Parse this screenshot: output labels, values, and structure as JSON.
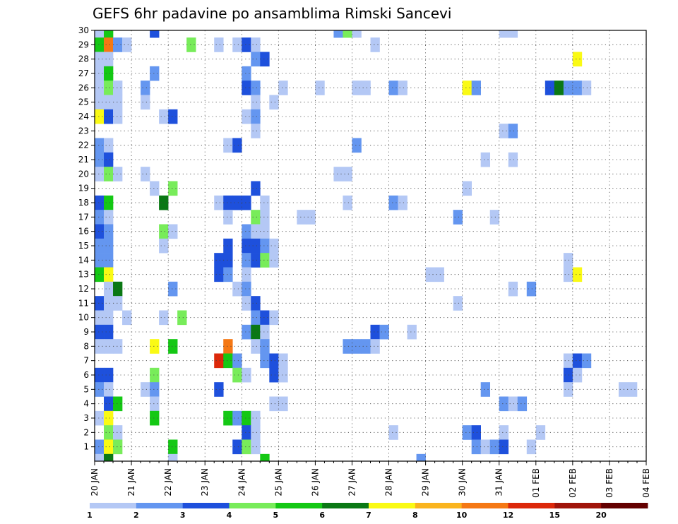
{
  "chart_data": {
    "type": "heatmap",
    "title": "GEFS 6hr padavine po ansamblima Rimski Sancevi",
    "grid": true,
    "y_ticks": [
      "1",
      "2",
      "3",
      "4",
      "5",
      "6",
      "7",
      "8",
      "9",
      "10",
      "11",
      "12",
      "13",
      "14",
      "15",
      "16",
      "17",
      "18",
      "19",
      "20",
      "21",
      "22",
      "23",
      "24",
      "25",
      "26",
      "27",
      "28",
      "29",
      "30"
    ],
    "x_ticks": [
      "20 JAN",
      "21 JAN",
      "22 JAN",
      "23 JAN",
      "24 JAN",
      "25 JAN",
      "26 JAN",
      "27 JAN",
      "28 JAN",
      "29 JAN",
      "30 JAN",
      "31 JAN",
      "01 FEB",
      "02 FEB",
      "03 FEB",
      "04 FEB"
    ],
    "x_range": [
      "20 JAN 00",
      "04 FEB 00"
    ],
    "time_step_hours": 6,
    "y_range": [
      0,
      30
    ],
    "colorbar": {
      "labels": [
        "1",
        "2",
        "3",
        "4",
        "5",
        "6",
        "7",
        "8",
        "10",
        "12",
        "15",
        "20"
      ],
      "colors": [
        "#b4c8f5",
        "#6496f0",
        "#1e50dc",
        "#78ec5a",
        "#14c814",
        "#0a7814",
        "#fafa14",
        "#fab41e",
        "#f57814",
        "#dc280a",
        "#a0140a",
        "#640000"
      ]
    },
    "cells": [
      {
        "m": 30,
        "s": [
          [
            0,
            1
          ],
          [
            1,
            5
          ],
          [
            6,
            3
          ],
          [
            26,
            2
          ],
          [
            27,
            4
          ],
          [
            28,
            1
          ],
          [
            44,
            1
          ],
          [
            45,
            1
          ]
        ]
      },
      {
        "m": 29,
        "s": [
          [
            0,
            5
          ],
          [
            1,
            9
          ],
          [
            2,
            2
          ],
          [
            3,
            1
          ],
          [
            10,
            4
          ],
          [
            13,
            1
          ],
          [
            15,
            1
          ],
          [
            16,
            3
          ],
          [
            17,
            1
          ],
          [
            30,
            1
          ]
        ]
      },
      {
        "m": 28,
        "s": [
          [
            0,
            1
          ],
          [
            1,
            1
          ],
          [
            17,
            2
          ],
          [
            18,
            3
          ],
          [
            52,
            7
          ]
        ]
      },
      {
        "m": 27,
        "s": [
          [
            0,
            1
          ],
          [
            1,
            5
          ],
          [
            6,
            2
          ],
          [
            16,
            2
          ]
        ]
      },
      {
        "m": 26,
        "s": [
          [
            0,
            1
          ],
          [
            1,
            4
          ],
          [
            2,
            1
          ],
          [
            5,
            2
          ],
          [
            16,
            3
          ],
          [
            17,
            2
          ],
          [
            20,
            1
          ],
          [
            24,
            1
          ],
          [
            28,
            1
          ],
          [
            29,
            1
          ],
          [
            32,
            2
          ],
          [
            33,
            1
          ],
          [
            40,
            7
          ],
          [
            41,
            2
          ],
          [
            49,
            3
          ],
          [
            50,
            6
          ],
          [
            51,
            2
          ],
          [
            52,
            2
          ],
          [
            53,
            1
          ]
        ]
      },
      {
        "m": 25,
        "s": [
          [
            0,
            1
          ],
          [
            1,
            1
          ],
          [
            2,
            1
          ],
          [
            5,
            1
          ],
          [
            17,
            1
          ],
          [
            19,
            1
          ]
        ]
      },
      {
        "m": 24,
        "s": [
          [
            0,
            7
          ],
          [
            1,
            3
          ],
          [
            2,
            1
          ],
          [
            7,
            1
          ],
          [
            8,
            3
          ],
          [
            16,
            1
          ],
          [
            17,
            2
          ]
        ]
      },
      {
        "m": 23,
        "s": [
          [
            17,
            1
          ],
          [
            44,
            1
          ],
          [
            45,
            2
          ]
        ]
      },
      {
        "m": 22,
        "s": [
          [
            0,
            2
          ],
          [
            1,
            1
          ],
          [
            14,
            1
          ],
          [
            15,
            3
          ],
          [
            28,
            2
          ]
        ]
      },
      {
        "m": 21,
        "s": [
          [
            0,
            2
          ],
          [
            1,
            3
          ],
          [
            42,
            1
          ],
          [
            45,
            1
          ]
        ]
      },
      {
        "m": 20,
        "s": [
          [
            0,
            1
          ],
          [
            1,
            4
          ],
          [
            2,
            1
          ],
          [
            5,
            1
          ],
          [
            26,
            1
          ],
          [
            27,
            1
          ]
        ]
      },
      {
        "m": 19,
        "s": [
          [
            6,
            1
          ],
          [
            8,
            4
          ],
          [
            17,
            3
          ],
          [
            40,
            1
          ]
        ]
      },
      {
        "m": 18,
        "s": [
          [
            0,
            3
          ],
          [
            1,
            5
          ],
          [
            7,
            6
          ],
          [
            13,
            1
          ],
          [
            14,
            3
          ],
          [
            15,
            3
          ],
          [
            16,
            3
          ],
          [
            18,
            1
          ],
          [
            27,
            1
          ],
          [
            32,
            2
          ],
          [
            33,
            1
          ]
        ]
      },
      {
        "m": 17,
        "s": [
          [
            0,
            2
          ],
          [
            1,
            1
          ],
          [
            14,
            1
          ],
          [
            17,
            4
          ],
          [
            18,
            1
          ],
          [
            22,
            1
          ],
          [
            23,
            1
          ],
          [
            39,
            2
          ],
          [
            43,
            1
          ]
        ]
      },
      {
        "m": 16,
        "s": [
          [
            0,
            3
          ],
          [
            1,
            2
          ],
          [
            7,
            4
          ],
          [
            8,
            1
          ],
          [
            16,
            2
          ],
          [
            17,
            1
          ],
          [
            18,
            1
          ]
        ]
      },
      {
        "m": 15,
        "s": [
          [
            0,
            2
          ],
          [
            1,
            2
          ],
          [
            7,
            1
          ],
          [
            14,
            3
          ],
          [
            16,
            3
          ],
          [
            17,
            3
          ],
          [
            18,
            2
          ],
          [
            19,
            1
          ]
        ]
      },
      {
        "m": 14,
        "s": [
          [
            0,
            2
          ],
          [
            1,
            2
          ],
          [
            13,
            3
          ],
          [
            14,
            3
          ],
          [
            16,
            2
          ],
          [
            17,
            3
          ],
          [
            18,
            4
          ],
          [
            19,
            1
          ],
          [
            51,
            1
          ]
        ]
      },
      {
        "m": 13,
        "s": [
          [
            0,
            5
          ],
          [
            1,
            7
          ],
          [
            13,
            3
          ],
          [
            14,
            2
          ],
          [
            16,
            1
          ],
          [
            36,
            1
          ],
          [
            37,
            1
          ],
          [
            51,
            1
          ],
          [
            52,
            7
          ]
        ]
      },
      {
        "m": 12,
        "s": [
          [
            1,
            1
          ],
          [
            2,
            6
          ],
          [
            8,
            2
          ],
          [
            15,
            1
          ],
          [
            16,
            2
          ],
          [
            45,
            1
          ],
          [
            47,
            2
          ]
        ]
      },
      {
        "m": 11,
        "s": [
          [
            0,
            3
          ],
          [
            1,
            1
          ],
          [
            2,
            1
          ],
          [
            16,
            1
          ],
          [
            17,
            3
          ],
          [
            39,
            1
          ]
        ]
      },
      {
        "m": 10,
        "s": [
          [
            0,
            1
          ],
          [
            1,
            1
          ],
          [
            3,
            1
          ],
          [
            7,
            1
          ],
          [
            9,
            4
          ],
          [
            17,
            2
          ],
          [
            18,
            3
          ],
          [
            19,
            1
          ]
        ]
      },
      {
        "m": 9,
        "s": [
          [
            0,
            3
          ],
          [
            1,
            3
          ],
          [
            16,
            2
          ],
          [
            17,
            6
          ],
          [
            18,
            1
          ],
          [
            30,
            3
          ],
          [
            31,
            2
          ],
          [
            34,
            1
          ]
        ]
      },
      {
        "m": 8,
        "s": [
          [
            0,
            1
          ],
          [
            1,
            1
          ],
          [
            2,
            1
          ],
          [
            6,
            7
          ],
          [
            8,
            5
          ],
          [
            14,
            9
          ],
          [
            17,
            1
          ],
          [
            18,
            2
          ],
          [
            27,
            2
          ],
          [
            28,
            2
          ],
          [
            29,
            2
          ],
          [
            30,
            1
          ]
        ]
      },
      {
        "m": 7,
        "s": [
          [
            13,
            10
          ],
          [
            14,
            5
          ],
          [
            15,
            2
          ],
          [
            18,
            2
          ],
          [
            19,
            3
          ],
          [
            20,
            1
          ],
          [
            51,
            1
          ],
          [
            52,
            3
          ],
          [
            53,
            2
          ]
        ]
      },
      {
        "m": 6,
        "s": [
          [
            0,
            3
          ],
          [
            1,
            3
          ],
          [
            6,
            4
          ],
          [
            15,
            4
          ],
          [
            16,
            1
          ],
          [
            19,
            3
          ],
          [
            20,
            1
          ],
          [
            51,
            3
          ],
          [
            52,
            1
          ]
        ]
      },
      {
        "m": 5,
        "s": [
          [
            0,
            2
          ],
          [
            1,
            1
          ],
          [
            5,
            1
          ],
          [
            6,
            2
          ],
          [
            13,
            3
          ],
          [
            42,
            2
          ],
          [
            51,
            1
          ],
          [
            57,
            1
          ],
          [
            58,
            1
          ]
        ]
      },
      {
        "m": 4,
        "s": [
          [
            1,
            3
          ],
          [
            2,
            5
          ],
          [
            6,
            1
          ],
          [
            19,
            1
          ],
          [
            20,
            1
          ],
          [
            44,
            2
          ],
          [
            45,
            1
          ],
          [
            46,
            2
          ]
        ]
      },
      {
        "m": 3,
        "s": [
          [
            0,
            1
          ],
          [
            1,
            7
          ],
          [
            6,
            5
          ],
          [
            14,
            5
          ],
          [
            15,
            2
          ],
          [
            16,
            5
          ],
          [
            17,
            1
          ]
        ]
      },
      {
        "m": 2,
        "s": [
          [
            1,
            4
          ],
          [
            2,
            1
          ],
          [
            16,
            3
          ],
          [
            17,
            1
          ],
          [
            32,
            1
          ],
          [
            40,
            2
          ],
          [
            41,
            3
          ],
          [
            44,
            1
          ],
          [
            48,
            1
          ]
        ]
      },
      {
        "m": 1,
        "s": [
          [
            0,
            2
          ],
          [
            1,
            7
          ],
          [
            2,
            4
          ],
          [
            8,
            5
          ],
          [
            15,
            3
          ],
          [
            16,
            4
          ],
          [
            17,
            1
          ],
          [
            41,
            2
          ],
          [
            42,
            1
          ],
          [
            43,
            2
          ],
          [
            44,
            3
          ],
          [
            47,
            1
          ]
        ]
      },
      {
        "m": 0,
        "s": [
          [
            0,
            1
          ],
          [
            1,
            6
          ],
          [
            8,
            1
          ],
          [
            18,
            5
          ],
          [
            35,
            2
          ]
        ]
      }
    ]
  }
}
